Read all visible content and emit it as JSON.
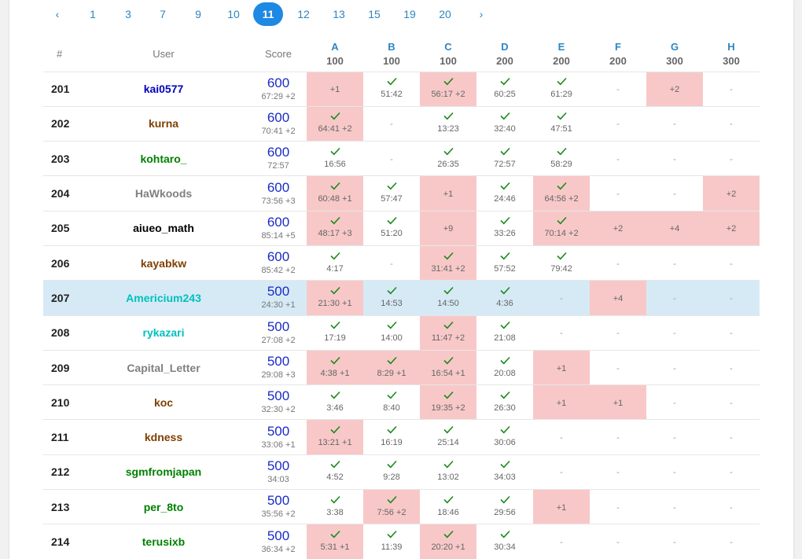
{
  "pagination": {
    "prev": "‹",
    "next": "›",
    "pages": [
      "1",
      "3",
      "7",
      "9",
      "10",
      "11",
      "12",
      "13",
      "15",
      "19",
      "20"
    ],
    "active": "11"
  },
  "columns": {
    "rank": "#",
    "user": "User",
    "score": "Score",
    "problems": [
      {
        "letter": "A",
        "points": "100"
      },
      {
        "letter": "B",
        "points": "100"
      },
      {
        "letter": "C",
        "points": "100"
      },
      {
        "letter": "D",
        "points": "200"
      },
      {
        "letter": "E",
        "points": "200"
      },
      {
        "letter": "F",
        "points": "200"
      },
      {
        "letter": "G",
        "points": "300"
      },
      {
        "letter": "H",
        "points": "300"
      }
    ]
  },
  "colors": {
    "accent": "#1e88e5",
    "link": "#2e86c1",
    "score": "#1a2bc6",
    "penalty_bg": "#f8c8c8",
    "highlight_bg": "#d6eaf5",
    "check": "#1e8a1e"
  },
  "rows": [
    {
      "rank": "201",
      "user": "kai0577",
      "color": "#0000c0",
      "score": "600",
      "time": "67:29 +2",
      "highlight": false,
      "cells": [
        {
          "type": "wa",
          "text": "+1"
        },
        {
          "type": "ac",
          "time": "51:42",
          "pen": false
        },
        {
          "type": "ac",
          "time": "56:17 +2",
          "pen": true
        },
        {
          "type": "ac",
          "time": "60:25",
          "pen": false
        },
        {
          "type": "ac",
          "time": "61:29",
          "pen": false
        },
        {
          "type": "none",
          "text": "-"
        },
        {
          "type": "wa",
          "text": "+2"
        },
        {
          "type": "none",
          "text": "-"
        }
      ]
    },
    {
      "rank": "202",
      "user": "kurna",
      "color": "#804000",
      "score": "600",
      "time": "70:41 +2",
      "highlight": false,
      "cells": [
        {
          "type": "ac",
          "time": "64:41 +2",
          "pen": true
        },
        {
          "type": "none",
          "text": "-"
        },
        {
          "type": "ac",
          "time": "13:23",
          "pen": false
        },
        {
          "type": "ac",
          "time": "32:40",
          "pen": false
        },
        {
          "type": "ac",
          "time": "47:51",
          "pen": false
        },
        {
          "type": "none",
          "text": "-"
        },
        {
          "type": "none",
          "text": "-"
        },
        {
          "type": "none",
          "text": "-"
        }
      ]
    },
    {
      "rank": "203",
      "user": "kohtaro_",
      "color": "#008000",
      "score": "600",
      "time": "72:57",
      "highlight": false,
      "cells": [
        {
          "type": "ac",
          "time": "16:56",
          "pen": false
        },
        {
          "type": "none",
          "text": "-"
        },
        {
          "type": "ac",
          "time": "26:35",
          "pen": false
        },
        {
          "type": "ac",
          "time": "72:57",
          "pen": false
        },
        {
          "type": "ac",
          "time": "58:29",
          "pen": false
        },
        {
          "type": "none",
          "text": "-"
        },
        {
          "type": "none",
          "text": "-"
        },
        {
          "type": "none",
          "text": "-"
        }
      ]
    },
    {
      "rank": "204",
      "user": "HaWkoods",
      "color": "#808080",
      "score": "600",
      "time": "73:56 +3",
      "highlight": false,
      "cells": [
        {
          "type": "ac",
          "time": "60:48 +1",
          "pen": true
        },
        {
          "type": "ac",
          "time": "57:47",
          "pen": false
        },
        {
          "type": "wa",
          "text": "+1"
        },
        {
          "type": "ac",
          "time": "24:46",
          "pen": false
        },
        {
          "type": "ac",
          "time": "64:56 +2",
          "pen": true
        },
        {
          "type": "none",
          "text": "-"
        },
        {
          "type": "none",
          "text": "-"
        },
        {
          "type": "wa",
          "text": "+2"
        }
      ]
    },
    {
      "rank": "205",
      "user": "aiueo_math",
      "color": "#000000",
      "score": "600",
      "time": "85:14 +5",
      "highlight": false,
      "cells": [
        {
          "type": "ac",
          "time": "48:17 +3",
          "pen": true
        },
        {
          "type": "ac",
          "time": "51:20",
          "pen": false
        },
        {
          "type": "wa",
          "text": "+9"
        },
        {
          "type": "ac",
          "time": "33:26",
          "pen": false
        },
        {
          "type": "ac",
          "time": "70:14 +2",
          "pen": true
        },
        {
          "type": "wa",
          "text": "+2"
        },
        {
          "type": "wa",
          "text": "+4"
        },
        {
          "type": "wa",
          "text": "+2"
        }
      ]
    },
    {
      "rank": "206",
      "user": "kayabkw",
      "color": "#804000",
      "score": "600",
      "time": "85:42 +2",
      "highlight": false,
      "cells": [
        {
          "type": "ac",
          "time": "4:17",
          "pen": false
        },
        {
          "type": "none",
          "text": "-"
        },
        {
          "type": "ac",
          "time": "31:41 +2",
          "pen": true
        },
        {
          "type": "ac",
          "time": "57:52",
          "pen": false
        },
        {
          "type": "ac",
          "time": "79:42",
          "pen": false
        },
        {
          "type": "none",
          "text": "-"
        },
        {
          "type": "none",
          "text": "-"
        },
        {
          "type": "none",
          "text": "-"
        }
      ]
    },
    {
      "rank": "207",
      "user": "Americium243",
      "color": "#00c0c0",
      "score": "500",
      "time": "24:30 +1",
      "highlight": true,
      "cells": [
        {
          "type": "ac",
          "time": "21:30 +1",
          "pen": true
        },
        {
          "type": "ac",
          "time": "14:53",
          "pen": false
        },
        {
          "type": "ac",
          "time": "14:50",
          "pen": false
        },
        {
          "type": "ac",
          "time": "4:36",
          "pen": false
        },
        {
          "type": "none",
          "text": "-"
        },
        {
          "type": "wa",
          "text": "+4"
        },
        {
          "type": "none",
          "text": "-"
        },
        {
          "type": "none",
          "text": "-"
        }
      ]
    },
    {
      "rank": "208",
      "user": "rykazari",
      "color": "#00c0c0",
      "score": "500",
      "time": "27:08 +2",
      "highlight": false,
      "cells": [
        {
          "type": "ac",
          "time": "17:19",
          "pen": false
        },
        {
          "type": "ac",
          "time": "14:00",
          "pen": false
        },
        {
          "type": "ac",
          "time": "11:47 +2",
          "pen": true
        },
        {
          "type": "ac",
          "time": "21:08",
          "pen": false
        },
        {
          "type": "none",
          "text": "-"
        },
        {
          "type": "none",
          "text": "-"
        },
        {
          "type": "none",
          "text": "-"
        },
        {
          "type": "none",
          "text": "-"
        }
      ]
    },
    {
      "rank": "209",
      "user": "Capital_Letter",
      "color": "#808080",
      "score": "500",
      "time": "29:08 +3",
      "highlight": false,
      "cells": [
        {
          "type": "ac",
          "time": "4:38 +1",
          "pen": true
        },
        {
          "type": "ac",
          "time": "8:29 +1",
          "pen": true
        },
        {
          "type": "ac",
          "time": "16:54 +1",
          "pen": true
        },
        {
          "type": "ac",
          "time": "20:08",
          "pen": false
        },
        {
          "type": "wa",
          "text": "+1"
        },
        {
          "type": "none",
          "text": "-"
        },
        {
          "type": "none",
          "text": "-"
        },
        {
          "type": "none",
          "text": "-"
        }
      ]
    },
    {
      "rank": "210",
      "user": "koc",
      "color": "#804000",
      "score": "500",
      "time": "32:30 +2",
      "highlight": false,
      "cells": [
        {
          "type": "ac",
          "time": "3:46",
          "pen": false
        },
        {
          "type": "ac",
          "time": "8:40",
          "pen": false
        },
        {
          "type": "ac",
          "time": "19:35 +2",
          "pen": true
        },
        {
          "type": "ac",
          "time": "26:30",
          "pen": false
        },
        {
          "type": "wa",
          "text": "+1"
        },
        {
          "type": "wa",
          "text": "+1"
        },
        {
          "type": "none",
          "text": "-"
        },
        {
          "type": "none",
          "text": "-"
        }
      ]
    },
    {
      "rank": "211",
      "user": "kdness",
      "color": "#804000",
      "score": "500",
      "time": "33:06 +1",
      "highlight": false,
      "cells": [
        {
          "type": "ac",
          "time": "13:21 +1",
          "pen": true
        },
        {
          "type": "ac",
          "time": "16:19",
          "pen": false
        },
        {
          "type": "ac",
          "time": "25:14",
          "pen": false
        },
        {
          "type": "ac",
          "time": "30:06",
          "pen": false
        },
        {
          "type": "none",
          "text": "-"
        },
        {
          "type": "none",
          "text": "-"
        },
        {
          "type": "none",
          "text": "-"
        },
        {
          "type": "none",
          "text": "-"
        }
      ]
    },
    {
      "rank": "212",
      "user": "sgmfromjapan",
      "color": "#008000",
      "score": "500",
      "time": "34:03",
      "highlight": false,
      "cells": [
        {
          "type": "ac",
          "time": "4:52",
          "pen": false
        },
        {
          "type": "ac",
          "time": "9:28",
          "pen": false
        },
        {
          "type": "ac",
          "time": "13:02",
          "pen": false
        },
        {
          "type": "ac",
          "time": "34:03",
          "pen": false
        },
        {
          "type": "none",
          "text": "-"
        },
        {
          "type": "none",
          "text": "-"
        },
        {
          "type": "none",
          "text": "-"
        },
        {
          "type": "none",
          "text": "-"
        }
      ]
    },
    {
      "rank": "213",
      "user": "per_8to",
      "color": "#008000",
      "score": "500",
      "time": "35:56 +2",
      "highlight": false,
      "cells": [
        {
          "type": "ac",
          "time": "3:38",
          "pen": false
        },
        {
          "type": "ac",
          "time": "7:56 +2",
          "pen": true
        },
        {
          "type": "ac",
          "time": "18:46",
          "pen": false
        },
        {
          "type": "ac",
          "time": "29:56",
          "pen": false
        },
        {
          "type": "wa",
          "text": "+1"
        },
        {
          "type": "none",
          "text": "-"
        },
        {
          "type": "none",
          "text": "-"
        },
        {
          "type": "none",
          "text": "-"
        }
      ]
    },
    {
      "rank": "214",
      "user": "terusixb",
      "color": "#008000",
      "score": "500",
      "time": "36:34 +2",
      "highlight": false,
      "cells": [
        {
          "type": "ac",
          "time": "5:31 +1",
          "pen": true
        },
        {
          "type": "ac",
          "time": "11:39",
          "pen": false
        },
        {
          "type": "ac",
          "time": "20:20 +1",
          "pen": true
        },
        {
          "type": "ac",
          "time": "30:34",
          "pen": false
        },
        {
          "type": "none",
          "text": "-"
        },
        {
          "type": "none",
          "text": "-"
        },
        {
          "type": "none",
          "text": "-"
        },
        {
          "type": "none",
          "text": "-"
        }
      ]
    }
  ]
}
